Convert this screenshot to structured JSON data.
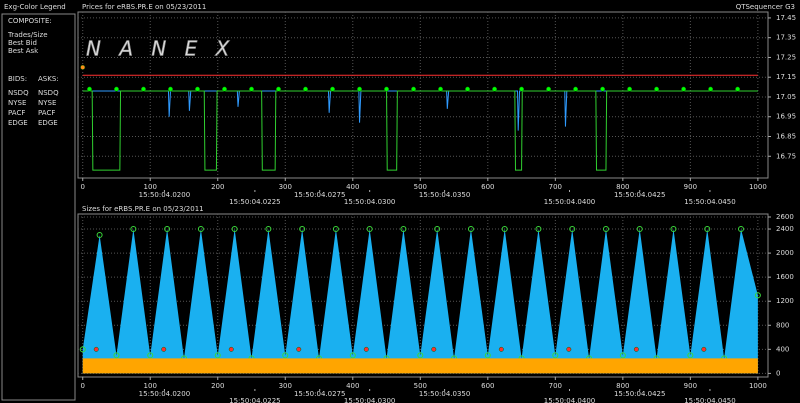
{
  "app_title": "QTSequencer G3",
  "legend_panel": {
    "title": "Exg-Color Legend",
    "composite_label": "COMPOSITE:",
    "composite": [
      {
        "label": "Trades/Size",
        "color": "#ffffff"
      },
      {
        "label": "Best Bid",
        "color": "#00ff00"
      },
      {
        "label": "Best Ask",
        "color": "#ff3030"
      }
    ],
    "bids_label": "BIDS:",
    "asks_label": "ASKS:",
    "bids": [
      {
        "label": "NSDQ",
        "color": "#2f9bff"
      },
      {
        "label": "NYSE",
        "color": "#c8e64a"
      },
      {
        "label": "PACF",
        "color": "#3ad8d8"
      },
      {
        "label": "EDGE",
        "color": "#30e070"
      }
    ],
    "asks": [
      {
        "label": "NSDQ",
        "color": "#ff8c1a"
      },
      {
        "label": "NYSE",
        "color": "#ff9a3c"
      },
      {
        "label": "PACF",
        "color": "#ffe030"
      },
      {
        "label": "EDGE",
        "color": "#c04020"
      }
    ]
  },
  "chart_data": [
    {
      "type": "line",
      "title": "Prices for  eRBS.PR.E  on  05/23/2011",
      "watermark": "N A N E X",
      "xlim": [
        -7,
        1015
      ],
      "xticks": [
        0,
        100,
        200,
        300,
        400,
        500,
        600,
        700,
        800,
        900,
        1000
      ],
      "time_labels": [
        {
          "value": 121,
          "label": "15:50:04.0200"
        },
        {
          "value": 255,
          "label": "15:50:04.0225"
        },
        {
          "value": 351,
          "label": "15:50:04.0275"
        },
        {
          "value": 425,
          "label": "15:50:04.0300"
        },
        {
          "value": 536,
          "label": "15:50:04.0350"
        },
        {
          "value": 721,
          "label": "15:50:04.0400"
        },
        {
          "value": 825,
          "label": "15:50:04.0425"
        },
        {
          "value": 929,
          "label": "15:50:04.0450"
        }
      ],
      "ylim": [
        16.64,
        17.48
      ],
      "yticks": [
        16.75,
        16.85,
        16.95,
        17.05,
        17.15,
        17.25,
        17.35,
        17.45
      ],
      "grid": true,
      "series": [
        {
          "style": "line",
          "color": "#ff3030",
          "x": [
            0,
            1000
          ],
          "values": [
            17.16,
            17.16
          ]
        },
        {
          "style": "line",
          "color": "#2f9bff",
          "x": [
            0,
            127,
            128,
            130,
            157,
            158,
            160,
            229,
            230,
            232,
            364,
            365,
            367,
            409,
            410,
            412,
            539,
            540,
            542,
            644,
            645,
            647,
            714,
            715,
            717,
            1000
          ],
          "values": [
            17.08,
            17.08,
            16.95,
            17.08,
            17.08,
            16.98,
            17.08,
            17.08,
            17.0,
            17.08,
            17.08,
            16.97,
            17.08,
            17.08,
            16.92,
            17.08,
            17.08,
            16.99,
            17.08,
            17.08,
            16.88,
            17.08,
            17.08,
            16.9,
            17.08,
            17.08
          ]
        },
        {
          "style": "line",
          "color": "#30d030",
          "x": [
            0,
            14,
            15,
            55,
            56,
            180,
            181,
            198,
            199,
            265,
            266,
            285,
            286,
            450,
            451,
            465,
            466,
            640,
            641,
            650,
            651,
            760,
            761,
            775,
            776,
            1000
          ],
          "values": [
            17.08,
            17.08,
            16.68,
            16.68,
            17.08,
            17.08,
            16.68,
            16.68,
            17.08,
            17.08,
            16.68,
            16.68,
            17.08,
            17.08,
            16.68,
            16.68,
            17.08,
            17.08,
            16.68,
            16.68,
            17.08,
            17.08,
            16.68,
            16.68,
            17.08,
            17.08
          ]
        },
        {
          "style": "scatter",
          "color": "#00ff00",
          "x": [
            10,
            50,
            90,
            130,
            170,
            210,
            250,
            290,
            330,
            370,
            410,
            450,
            490,
            530,
            570,
            610,
            650,
            690,
            730,
            770,
            810,
            850,
            890,
            930,
            970
          ],
          "values": [
            17.09,
            17.09,
            17.09,
            17.09,
            17.09,
            17.09,
            17.09,
            17.09,
            17.09,
            17.09,
            17.09,
            17.09,
            17.09,
            17.09,
            17.09,
            17.09,
            17.09,
            17.09,
            17.09,
            17.09,
            17.09,
            17.09,
            17.09,
            17.09,
            17.09
          ]
        },
        {
          "style": "scatter",
          "color": "#ff8c1a",
          "x": [
            0
          ],
          "values": [
            17.2
          ]
        }
      ]
    },
    {
      "type": "area",
      "title": "Sizes for  eRBS.PR.E  on  05/23/2011",
      "xlim": [
        -7,
        1015
      ],
      "xticks": [
        0,
        100,
        200,
        300,
        400,
        500,
        600,
        700,
        800,
        900,
        1000
      ],
      "time_labels": [
        {
          "value": 121,
          "label": "15:50:04.0200"
        },
        {
          "value": 255,
          "label": "15:50:04.0225"
        },
        {
          "value": 351,
          "label": "15:50:04.0275"
        },
        {
          "value": 425,
          "label": "15:50:04.0300"
        },
        {
          "value": 536,
          "label": "15:50:04.0350"
        },
        {
          "value": 721,
          "label": "15:50:04.0400"
        },
        {
          "value": 825,
          "label": "15:50:04.0425"
        },
        {
          "value": 929,
          "label": "15:50:04.0450"
        }
      ],
      "ylim": [
        -60,
        2650
      ],
      "yticks": [
        0,
        400,
        800,
        1200,
        1600,
        2000,
        2400,
        2600
      ],
      "grid": true,
      "series": [
        {
          "style": "area",
          "color": "#1ab0f0",
          "markers": "#3ad83a",
          "x": [
            0,
            25,
            50,
            75,
            100,
            125,
            150,
            175,
            200,
            225,
            250,
            275,
            300,
            325,
            350,
            375,
            400,
            425,
            450,
            475,
            500,
            525,
            550,
            575,
            600,
            625,
            650,
            675,
            700,
            725,
            750,
            775,
            800,
            825,
            850,
            875,
            900,
            925,
            950,
            975,
            1000
          ],
          "values": [
            400,
            2300,
            300,
            2400,
            300,
            2400,
            250,
            2400,
            300,
            2400,
            250,
            2400,
            300,
            2400,
            250,
            2400,
            300,
            2400,
            250,
            2400,
            300,
            2400,
            250,
            2400,
            300,
            2400,
            250,
            2400,
            300,
            2400,
            250,
            2400,
            300,
            2400,
            250,
            2400,
            300,
            2400,
            250,
            2400,
            1300
          ]
        },
        {
          "style": "area",
          "color": "#ffa500",
          "x": [
            0,
            1000
          ],
          "values": [
            250,
            250
          ]
        },
        {
          "style": "scatter",
          "color": "#ff3030",
          "x": [
            20,
            120,
            220,
            320,
            420,
            520,
            620,
            720,
            820,
            920
          ],
          "values": [
            400,
            400,
            400,
            400,
            400,
            400,
            400,
            400,
            400,
            400
          ]
        }
      ]
    }
  ]
}
